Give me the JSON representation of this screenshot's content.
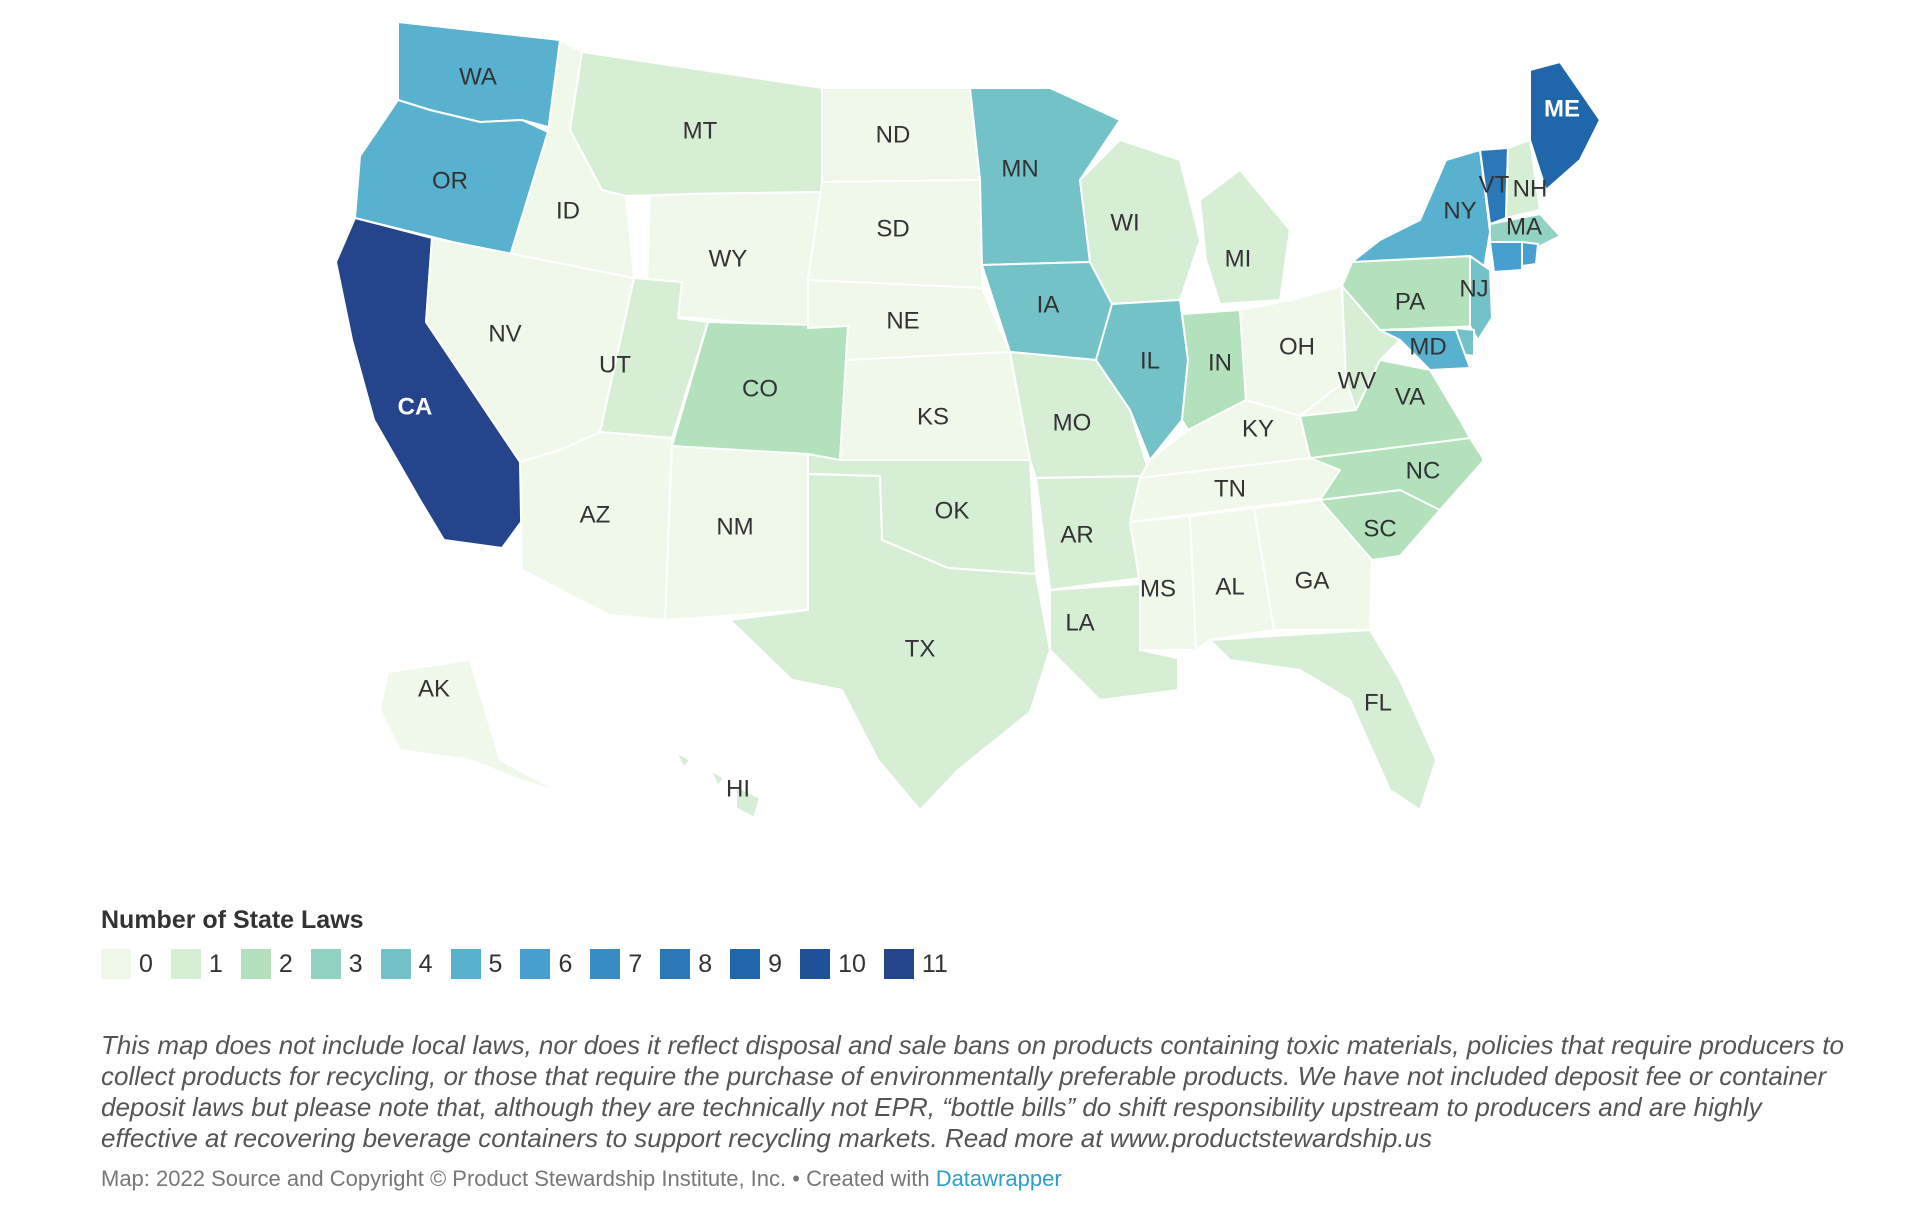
{
  "legend": {
    "title": "Number of State Laws",
    "scale": [
      {
        "value": "0",
        "color": "#f0f8e9"
      },
      {
        "value": "1",
        "color": "#d6efd4"
      },
      {
        "value": "2",
        "color": "#b2e1bc"
      },
      {
        "value": "3",
        "color": "#91d2c2"
      },
      {
        "value": "4",
        "color": "#72c2c8"
      },
      {
        "value": "5",
        "color": "#58b1cf"
      },
      {
        "value": "6",
        "color": "#469fce"
      },
      {
        "value": "7",
        "color": "#398bc4"
      },
      {
        "value": "8",
        "color": "#2b78b8"
      },
      {
        "value": "9",
        "color": "#1f66aa"
      },
      {
        "value": "10",
        "color": "#1d5298"
      },
      {
        "value": "11",
        "color": "#24448b"
      }
    ]
  },
  "states": [
    {
      "code": "WA",
      "laws": 5
    },
    {
      "code": "OR",
      "laws": 5
    },
    {
      "code": "CA",
      "laws": 11
    },
    {
      "code": "ID",
      "laws": 0
    },
    {
      "code": "NV",
      "laws": 0
    },
    {
      "code": "MT",
      "laws": 1
    },
    {
      "code": "WY",
      "laws": 0
    },
    {
      "code": "UT",
      "laws": 1
    },
    {
      "code": "CO",
      "laws": 2
    },
    {
      "code": "AZ",
      "laws": 0
    },
    {
      "code": "NM",
      "laws": 0
    },
    {
      "code": "ND",
      "laws": 0
    },
    {
      "code": "SD",
      "laws": 0
    },
    {
      "code": "NE",
      "laws": 0
    },
    {
      "code": "KS",
      "laws": 0
    },
    {
      "code": "OK",
      "laws": 1
    },
    {
      "code": "TX",
      "laws": 1
    },
    {
      "code": "MN",
      "laws": 4
    },
    {
      "code": "IA",
      "laws": 4
    },
    {
      "code": "MO",
      "laws": 1
    },
    {
      "code": "AR",
      "laws": 1
    },
    {
      "code": "LA",
      "laws": 1
    },
    {
      "code": "WI",
      "laws": 1
    },
    {
      "code": "IL",
      "laws": 4
    },
    {
      "code": "MI",
      "laws": 1
    },
    {
      "code": "IN",
      "laws": 2
    },
    {
      "code": "OH",
      "laws": 0
    },
    {
      "code": "KY",
      "laws": 0
    },
    {
      "code": "TN",
      "laws": 0
    },
    {
      "code": "MS",
      "laws": 0
    },
    {
      "code": "AL",
      "laws": 0
    },
    {
      "code": "GA",
      "laws": 0
    },
    {
      "code": "FL",
      "laws": 1
    },
    {
      "code": "SC",
      "laws": 2
    },
    {
      "code": "NC",
      "laws": 2
    },
    {
      "code": "VA",
      "laws": 2
    },
    {
      "code": "WV",
      "laws": 1
    },
    {
      "code": "PA",
      "laws": 2
    },
    {
      "code": "NY",
      "laws": 5
    },
    {
      "code": "VT",
      "laws": 8
    },
    {
      "code": "NH",
      "laws": 1
    },
    {
      "code": "ME",
      "laws": 9
    },
    {
      "code": "MA",
      "laws": 3
    },
    {
      "code": "CT",
      "laws": 6
    },
    {
      "code": "RI",
      "laws": 6
    },
    {
      "code": "NJ",
      "laws": 4
    },
    {
      "code": "DE",
      "laws": 4
    },
    {
      "code": "MD",
      "laws": 5
    },
    {
      "code": "AK",
      "laws": 0
    },
    {
      "code": "HI",
      "laws": 1
    }
  ],
  "note": "This map does not include local laws, nor does it reflect disposal and sale bans on products containing toxic materials, policies that require producers to collect products for recycling, or those that require the purchase of environmentally preferable products. We have not included deposit fee or container deposit laws but please note that, although they are technically not EPR, “bottle bills” do shift responsibility upstream to producers and are highly effective at recovering beverage containers to support recycling markets. Read more at www.productstewardship.us",
  "credit": {
    "text": "Map: 2022 Source and Copyright © Product Stewardship Institute, Inc. • Created with ",
    "link_text": "Datawrapper"
  }
}
